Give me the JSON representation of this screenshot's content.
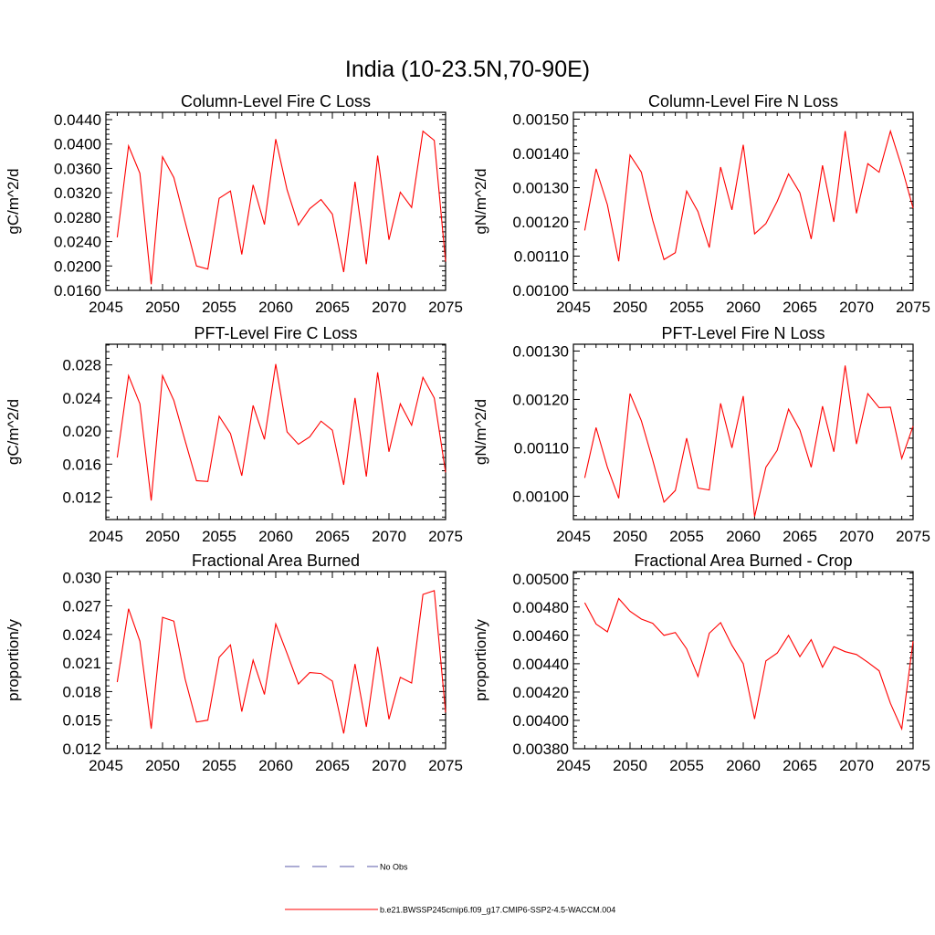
{
  "figure": {
    "title": "India (10-23.5N,70-90E)"
  },
  "legend": {
    "entries": [
      {
        "label": "No Obs",
        "style": "dashed",
        "color": "#5a5aa8"
      },
      {
        "label": "b.e21.BWSSP245cmip6.f09_g17.CMIP6-SSP2-4.5-WACCM.004",
        "style": "solid",
        "color": "#ff0000"
      }
    ]
  },
  "chart_data": [
    {
      "type": "line",
      "title": "Column-Level Fire C Loss",
      "xlabel": "",
      "ylabel": "gC/m^2/d",
      "xlim": [
        2045,
        2075
      ],
      "ylim": [
        0.016,
        0.0452
      ],
      "xticks": [
        2045,
        2050,
        2055,
        2060,
        2065,
        2070,
        2075
      ],
      "yticks": [
        "0.0160",
        "0.0200",
        "0.0240",
        "0.0280",
        "0.0320",
        "0.0360",
        "0.0400",
        "0.0440"
      ],
      "x": [
        2046,
        2047,
        2048,
        2049,
        2050,
        2051,
        2052,
        2053,
        2054,
        2055,
        2056,
        2057,
        2058,
        2059,
        2060,
        2061,
        2062,
        2063,
        2064,
        2065,
        2066,
        2067,
        2068,
        2069,
        2070,
        2071,
        2072,
        2073,
        2074,
        2075
      ],
      "series": [
        {
          "color": "#ff0000",
          "values": [
            0.0247,
            0.0397,
            0.0352,
            0.017,
            0.0379,
            0.0345,
            0.0272,
            0.02,
            0.0195,
            0.0311,
            0.0323,
            0.0219,
            0.0333,
            0.0268,
            0.0408,
            0.0325,
            0.0267,
            0.0294,
            0.0309,
            0.0285,
            0.019,
            0.0338,
            0.0203,
            0.0381,
            0.0243,
            0.0321,
            0.0296,
            0.0421,
            0.0406,
            0.0207
          ]
        }
      ]
    },
    {
      "type": "line",
      "title": "Column-Level Fire N Loss",
      "xlabel": "",
      "ylabel": "gN/m^2/d",
      "xlim": [
        2045,
        2075
      ],
      "ylim": [
        0.001,
        0.00152
      ],
      "xticks": [
        2045,
        2050,
        2055,
        2060,
        2065,
        2070,
        2075
      ],
      "yticks": [
        "0.00100",
        "0.00110",
        "0.00120",
        "0.00130",
        "0.00140",
        "0.00150"
      ],
      "x": [
        2046,
        2047,
        2048,
        2049,
        2050,
        2051,
        2052,
        2053,
        2054,
        2055,
        2056,
        2057,
        2058,
        2059,
        2060,
        2061,
        2062,
        2063,
        2064,
        2065,
        2066,
        2067,
        2068,
        2069,
        2070,
        2071,
        2072,
        2073,
        2074,
        2075
      ],
      "series": [
        {
          "color": "#ff0000",
          "values": [
            0.001175,
            0.001355,
            0.00125,
            0.001085,
            0.001395,
            0.001345,
            0.001205,
            0.00109,
            0.00111,
            0.00129,
            0.00123,
            0.001125,
            0.00136,
            0.001235,
            0.001425,
            0.001165,
            0.001195,
            0.00126,
            0.00134,
            0.001285,
            0.00115,
            0.001365,
            0.0012,
            0.001465,
            0.001225,
            0.00137,
            0.001345,
            0.001465,
            0.00136,
            0.00124
          ]
        }
      ]
    },
    {
      "type": "line",
      "title": "PFT-Level Fire C Loss",
      "xlabel": "",
      "ylabel": "gC/m^2/d",
      "xlim": [
        2045,
        2075
      ],
      "ylim": [
        0.0093,
        0.0305
      ],
      "xticks": [
        2045,
        2050,
        2055,
        2060,
        2065,
        2070,
        2075
      ],
      "yticks": [
        "0.012",
        "0.016",
        "0.020",
        "0.024",
        "0.028"
      ],
      "x": [
        2046,
        2047,
        2048,
        2049,
        2050,
        2051,
        2052,
        2053,
        2054,
        2055,
        2056,
        2057,
        2058,
        2059,
        2060,
        2061,
        2062,
        2063,
        2064,
        2065,
        2066,
        2067,
        2068,
        2069,
        2070,
        2071,
        2072,
        2073,
        2074,
        2075
      ],
      "series": [
        {
          "color": "#ff0000",
          "values": [
            0.0168,
            0.0267,
            0.0233,
            0.0116,
            0.0267,
            0.0237,
            0.0188,
            0.014,
            0.0139,
            0.0218,
            0.0197,
            0.0146,
            0.0231,
            0.019,
            0.0281,
            0.0199,
            0.0184,
            0.0193,
            0.0212,
            0.0201,
            0.0135,
            0.024,
            0.0145,
            0.0271,
            0.0175,
            0.0233,
            0.0207,
            0.0265,
            0.024,
            0.015
          ]
        }
      ]
    },
    {
      "type": "line",
      "title": "PFT-Level Fire N Loss",
      "xlabel": "",
      "ylabel": "gN/m^2/d",
      "xlim": [
        2045,
        2075
      ],
      "ylim": [
        0.000952,
        0.001314
      ],
      "xticks": [
        2045,
        2050,
        2055,
        2060,
        2065,
        2070,
        2075
      ],
      "yticks": [
        "0.00100",
        "0.00110",
        "0.00120",
        "0.00130"
      ],
      "x": [
        2046,
        2047,
        2048,
        2049,
        2050,
        2051,
        2052,
        2053,
        2054,
        2055,
        2056,
        2057,
        2058,
        2059,
        2060,
        2061,
        2062,
        2063,
        2064,
        2065,
        2066,
        2067,
        2068,
        2069,
        2070,
        2071,
        2072,
        2073,
        2074,
        2075
      ],
      "series": [
        {
          "color": "#ff0000",
          "values": [
            0.001038,
            0.001142,
            0.00106,
            0.000996,
            0.001212,
            0.001156,
            0.001075,
            0.000988,
            0.001012,
            0.00112,
            0.001017,
            0.001013,
            0.001192,
            0.0011,
            0.001207,
            0.000958,
            0.00106,
            0.001095,
            0.00118,
            0.001137,
            0.00106,
            0.001186,
            0.001092,
            0.00127,
            0.001108,
            0.001212,
            0.001183,
            0.001184,
            0.001078,
            0.001145
          ]
        }
      ]
    },
    {
      "type": "line",
      "title": "Fractional Area Burned",
      "xlabel": "",
      "ylabel": "proportion/y",
      "xlim": [
        2045,
        2075
      ],
      "ylim": [
        0.012,
        0.0306
      ],
      "xticks": [
        2045,
        2050,
        2055,
        2060,
        2065,
        2070,
        2075
      ],
      "yticks": [
        "0.012",
        "0.015",
        "0.018",
        "0.021",
        "0.024",
        "0.027",
        "0.030"
      ],
      "x": [
        2046,
        2047,
        2048,
        2049,
        2050,
        2051,
        2052,
        2053,
        2054,
        2055,
        2056,
        2057,
        2058,
        2059,
        2060,
        2061,
        2062,
        2063,
        2064,
        2065,
        2066,
        2067,
        2068,
        2069,
        2070,
        2071,
        2072,
        2073,
        2074,
        2075
      ],
      "series": [
        {
          "color": "#ff0000",
          "values": [
            0.019,
            0.0267,
            0.0233,
            0.0141,
            0.0258,
            0.0254,
            0.0193,
            0.0148,
            0.015,
            0.0216,
            0.0229,
            0.0159,
            0.0213,
            0.0177,
            0.0251,
            0.022,
            0.0188,
            0.02,
            0.0199,
            0.0191,
            0.0136,
            0.0209,
            0.0143,
            0.0227,
            0.0151,
            0.0195,
            0.0189,
            0.0282,
            0.0286,
            0.0158
          ]
        }
      ]
    },
    {
      "type": "line",
      "title": "Fractional Area Burned - Crop",
      "xlabel": "",
      "ylabel": "proportion/y",
      "xlim": [
        2045,
        2075
      ],
      "ylim": [
        0.0038,
        0.00505
      ],
      "xticks": [
        2045,
        2050,
        2055,
        2060,
        2065,
        2070,
        2075
      ],
      "yticks": [
        "0.00380",
        "0.00400",
        "0.00420",
        "0.00440",
        "0.00460",
        "0.00480",
        "0.00500"
      ],
      "x": [
        2046,
        2047,
        2048,
        2049,
        2050,
        2051,
        2052,
        2053,
        2054,
        2055,
        2056,
        2057,
        2058,
        2059,
        2060,
        2061,
        2062,
        2063,
        2064,
        2065,
        2066,
        2067,
        2068,
        2069,
        2070,
        2071,
        2072,
        2073,
        2074,
        2075
      ],
      "series": [
        {
          "color": "#ff0000",
          "values": [
            0.00483,
            0.00468,
            0.004625,
            0.00486,
            0.00477,
            0.004715,
            0.004685,
            0.0046,
            0.00462,
            0.004505,
            0.00431,
            0.004615,
            0.00469,
            0.00453,
            0.0044,
            0.00401,
            0.00442,
            0.004475,
            0.0046,
            0.00445,
            0.00457,
            0.004375,
            0.00452,
            0.004485,
            0.004465,
            0.00441,
            0.00435,
            0.00412,
            0.00394,
            0.00456
          ]
        }
      ]
    }
  ]
}
